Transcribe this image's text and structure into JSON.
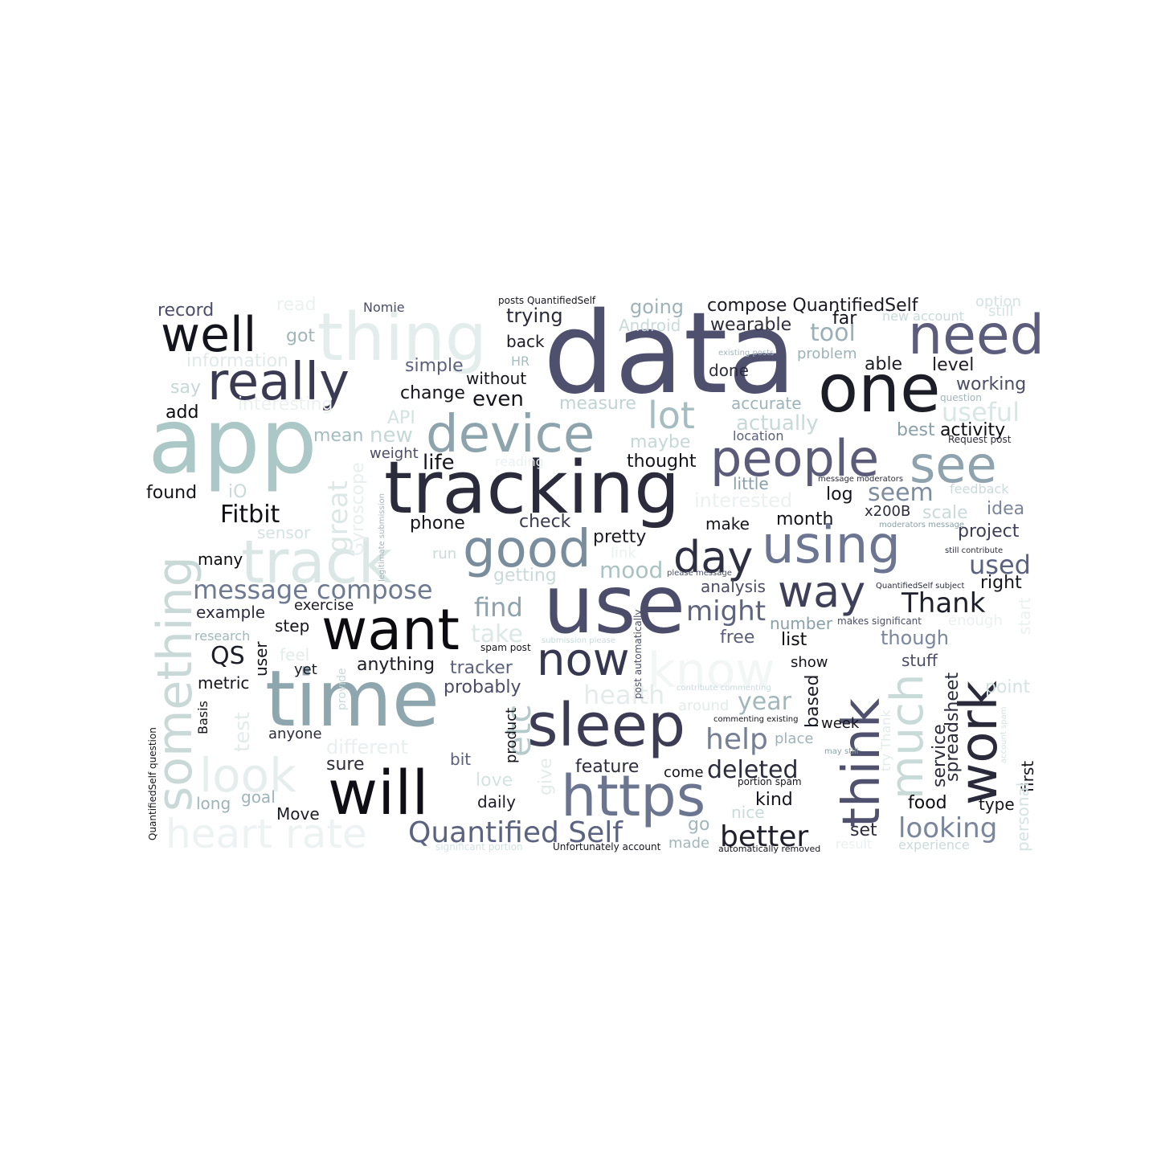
{
  "word_cloud": {
    "words": [
      {
        "text": "data",
        "color": "#4f506e"
      },
      {
        "text": "app",
        "color": "#abc8c7"
      },
      {
        "text": "tracking",
        "color": "#2b2b3c"
      },
      {
        "text": "use",
        "color": "#4c4d6a"
      },
      {
        "text": "time",
        "color": "#8ea6ae"
      },
      {
        "text": "thing",
        "color": "#e3edeb"
      },
      {
        "text": "one",
        "color": "#1d1d28"
      },
      {
        "text": "need",
        "color": "#5c5d7c"
      },
      {
        "text": "really",
        "color": "#3a3a53"
      },
      {
        "text": "well",
        "color": "#14141c"
      },
      {
        "text": "device",
        "color": "#8da4ad"
      },
      {
        "text": "people",
        "color": "#5b5c7a"
      },
      {
        "text": "see",
        "color": "#8ea3ad"
      },
      {
        "text": "good",
        "color": "#7a8d9c"
      },
      {
        "text": "using",
        "color": "#6c7591"
      },
      {
        "text": "track",
        "color": "#dbe7e5"
      },
      {
        "text": "want",
        "color": "#0b0b10"
      },
      {
        "text": "sleep",
        "color": "#3c3d55"
      },
      {
        "text": "will",
        "color": "#0e0e14"
      },
      {
        "text": "https",
        "color": "#6b7590"
      },
      {
        "text": "think",
        "color": "#50516f"
      },
      {
        "text": "work",
        "color": "#2a2a3b"
      },
      {
        "text": "something",
        "color": "#c9d9d8"
      },
      {
        "text": "know",
        "color": "#f2f6f5"
      },
      {
        "text": "much",
        "color": "#c8dbd9"
      },
      {
        "text": "now",
        "color": "#363750"
      },
      {
        "text": "day",
        "color": "#2e2f42"
      },
      {
        "text": "way",
        "color": "#3e3f58"
      },
      {
        "text": "look",
        "color": "#e6eeed"
      },
      {
        "text": "heart rate",
        "color": "#edf3f2"
      },
      {
        "text": "lot",
        "color": "#a5bcc0"
      },
      {
        "text": "etc",
        "color": "#b5cbcb"
      },
      {
        "text": "Quantified Self",
        "color": "#5c6380"
      },
      {
        "text": "message compose",
        "color": "#6e7a92"
      },
      {
        "text": "deleted",
        "color": "#2b2c3d"
      },
      {
        "text": "better",
        "color": "#1f1f2b"
      },
      {
        "text": "looking",
        "color": "#7a869c"
      },
      {
        "text": "help",
        "color": "#747e97"
      },
      {
        "text": "Thank",
        "color": "#20202c"
      },
      {
        "text": "might",
        "color": "#5e6480"
      },
      {
        "text": "compose QuantifiedSelf",
        "color": "#1a1a24"
      },
      {
        "text": "find",
        "color": "#8da2ac"
      },
      {
        "text": "used",
        "color": "#5b6180"
      },
      {
        "text": "Fitbit",
        "color": "#0f0f15"
      },
      {
        "text": "seem",
        "color": "#7e8ca0"
      },
      {
        "text": "tool",
        "color": "#9aafb6"
      },
      {
        "text": "year",
        "color": "#a1b7bb"
      },
      {
        "text": "health",
        "color": "#e3ecea"
      },
      {
        "text": "useful",
        "color": "#d8e6e4"
      },
      {
        "text": "mood",
        "color": "#aac2c2"
      },
      {
        "text": "take",
        "color": "#dce8e6"
      },
      {
        "text": "actually",
        "color": "#c7d9d8"
      },
      {
        "text": "interested",
        "color": "#eaf1f0"
      },
      {
        "text": "pretty",
        "color": "#1c1c27"
      },
      {
        "text": "probably",
        "color": "#4b4c68"
      },
      {
        "text": "tracker",
        "color": "#5b627d"
      },
      {
        "text": "anything",
        "color": "#1c1c26"
      },
      {
        "text": "different",
        "color": "#e8efee"
      },
      {
        "text": "QS",
        "color": "#1c1c27"
      },
      {
        "text": "month",
        "color": "#15151d"
      },
      {
        "text": "though",
        "color": "#79869c"
      },
      {
        "text": "project",
        "color": "#3d3e56"
      },
      {
        "text": "idea",
        "color": "#7a849b"
      },
      {
        "text": "great",
        "color": "#dce8e6"
      },
      {
        "text": "scale",
        "color": "#c9dad9"
      },
      {
        "text": "life",
        "color": "#15151d"
      },
      {
        "text": "new",
        "color": "#c5d7d6"
      },
      {
        "text": "maybe",
        "color": "#c5d7d6"
      },
      {
        "text": "trying",
        "color": "#2a2a3b"
      },
      {
        "text": "going",
        "color": "#9db3b9"
      },
      {
        "text": "measure",
        "color": "#c0d3d3"
      },
      {
        "text": "even",
        "color": "#14141c"
      },
      {
        "text": "simple",
        "color": "#5a607c"
      },
      {
        "text": "record",
        "color": "#4c4d69"
      },
      {
        "text": "read",
        "color": "#eaf1f0"
      },
      {
        "text": "got",
        "color": "#9fb5b9"
      },
      {
        "text": "information",
        "color": "#dfeae8"
      },
      {
        "text": "say",
        "color": "#c5d7d6"
      },
      {
        "text": "add",
        "color": "#0c0c11"
      },
      {
        "text": "Nomie",
        "color": "#4b4c68"
      },
      {
        "text": "posts QuantifiedSelf",
        "color": "#15151d"
      },
      {
        "text": "back",
        "color": "#1c1c27"
      },
      {
        "text": "HR",
        "color": "#a6bdc0"
      },
      {
        "text": "without",
        "color": "#14141c"
      },
      {
        "text": "change",
        "color": "#14141c"
      },
      {
        "text": "API",
        "color": "#d4e3e1"
      },
      {
        "text": "weight",
        "color": "#4b4d67"
      },
      {
        "text": "mean",
        "color": "#a5bcbf"
      },
      {
        "text": "found",
        "color": "#14141c"
      },
      {
        "text": "iO",
        "color": "#c9dad9"
      },
      {
        "text": "sensor",
        "color": "#d4e3e1"
      },
      {
        "text": "Gyroscope",
        "color": "#e8efee"
      },
      {
        "text": "many",
        "color": "#0c0c11"
      },
      {
        "text": "exercise",
        "color": "#1c1c27"
      },
      {
        "text": "example",
        "color": "#2c2c3d"
      },
      {
        "text": "step",
        "color": "#14141c"
      },
      {
        "text": "research",
        "color": "#a1b7bb"
      },
      {
        "text": "feel",
        "color": "#e3ecea"
      },
      {
        "text": "yet",
        "color": "#1c1c27"
      },
      {
        "text": "user",
        "color": "#14141c"
      },
      {
        "text": "metric",
        "color": "#14141c"
      },
      {
        "text": "test",
        "color": "#e3ecea"
      },
      {
        "text": "anyone",
        "color": "#2c2c3d"
      },
      {
        "text": "sure",
        "color": "#2c2c3d"
      },
      {
        "text": "bit",
        "color": "#5a607c"
      },
      {
        "text": "love",
        "color": "#d4e3e1"
      },
      {
        "text": "long",
        "color": "#9db3b9"
      },
      {
        "text": "goal",
        "color": "#9db3b9"
      },
      {
        "text": "Move",
        "color": "#1c1c27"
      },
      {
        "text": "daily",
        "color": "#1c1c27"
      },
      {
        "text": "phone",
        "color": "#14141c"
      },
      {
        "text": "check",
        "color": "#3a3b52"
      },
      {
        "text": "run",
        "color": "#c9dad9"
      },
      {
        "text": "getting",
        "color": "#c9dad9"
      },
      {
        "text": "link",
        "color": "#eaf1f0"
      },
      {
        "text": "thought",
        "color": "#14141c"
      },
      {
        "text": "make",
        "color": "#14141c"
      },
      {
        "text": "analysis",
        "color": "#4b4d67"
      },
      {
        "text": "free",
        "color": "#5a607c"
      },
      {
        "text": "number",
        "color": "#8aa0a9"
      },
      {
        "text": "list",
        "color": "#0c0c11"
      },
      {
        "text": "show",
        "color": "#14141c"
      },
      {
        "text": "stuff",
        "color": "#4b4d67"
      },
      {
        "text": "point",
        "color": "#d4e3e1"
      },
      {
        "text": "based",
        "color": "#1c1c27"
      },
      {
        "text": "week",
        "color": "#14141c"
      },
      {
        "text": "place",
        "color": "#9db3b9"
      },
      {
        "text": "around",
        "color": "#e3ecea"
      },
      {
        "text": "feature",
        "color": "#2c2c3d"
      },
      {
        "text": "come",
        "color": "#14141c"
      },
      {
        "text": "kind",
        "color": "#14141c"
      },
      {
        "text": "nice",
        "color": "#c9dad9"
      },
      {
        "text": "go",
        "color": "#a1b7bb"
      },
      {
        "text": "made",
        "color": "#a1b7bb"
      },
      {
        "text": "set",
        "color": "#2c2c3d"
      },
      {
        "text": "food",
        "color": "#0c0c11"
      },
      {
        "text": "type",
        "color": "#14141c"
      },
      {
        "text": "service",
        "color": "#2c2c3d"
      },
      {
        "text": "spreadsheet",
        "color": "#2c2c3d"
      },
      {
        "text": "first",
        "color": "#14141c"
      },
      {
        "text": "personal",
        "color": "#d4e3e1"
      },
      {
        "text": "experience",
        "color": "#c9dad9"
      },
      {
        "text": "result",
        "color": "#eaf1f0"
      },
      {
        "text": "give",
        "color": "#e3ecea"
      },
      {
        "text": "product",
        "color": "#14141c"
      },
      {
        "text": "provide",
        "color": "#c9dad9"
      },
      {
        "text": "wearable",
        "color": "#2c2c3d"
      },
      {
        "text": "Android",
        "color": "#c9dad9"
      },
      {
        "text": "done",
        "color": "#2c2c3d"
      },
      {
        "text": "accurate",
        "color": "#9db3b9"
      },
      {
        "text": "location",
        "color": "#5a607c"
      },
      {
        "text": "little",
        "color": "#8aa0a9"
      },
      {
        "text": "log",
        "color": "#14141c"
      },
      {
        "text": "x200B",
        "color": "#2c2c3d"
      },
      {
        "text": "able",
        "color": "#1c1c27"
      },
      {
        "text": "level",
        "color": "#1c1c27"
      },
      {
        "text": "working",
        "color": "#4b4d67"
      },
      {
        "text": "best",
        "color": "#8aa0a9"
      },
      {
        "text": "activity",
        "color": "#0c0c11"
      },
      {
        "text": "far",
        "color": "#14141c"
      },
      {
        "text": "problem",
        "color": "#9db3b9"
      },
      {
        "text": "option",
        "color": "#d4e3e1"
      },
      {
        "text": "still",
        "color": "#d4e3e1"
      },
      {
        "text": "new account",
        "color": "#c9dad9"
      },
      {
        "text": "question",
        "color": "#a1b7bb"
      },
      {
        "text": "Request post",
        "color": "#2c2c3d"
      },
      {
        "text": "feedback",
        "color": "#c9dad9"
      },
      {
        "text": "right",
        "color": "#14141c"
      },
      {
        "text": "enough",
        "color": "#eaf1f0"
      },
      {
        "text": "start",
        "color": "#eaf1f0"
      },
      {
        "text": "existing posts",
        "color": "#a1b7bb"
      },
      {
        "text": "message moderators",
        "color": "#2c2c3d"
      },
      {
        "text": "moderators message",
        "color": "#8aa0a9"
      },
      {
        "text": "still contribute",
        "color": "#2c2c3d"
      },
      {
        "text": "QuantifiedSelf subject",
        "color": "#2c2c3d"
      },
      {
        "text": "makes significant",
        "color": "#4b4d67"
      },
      {
        "text": "please message",
        "color": "#4b4d67"
      },
      {
        "text": "post automatically",
        "color": "#4b4d67"
      },
      {
        "text": "submission please",
        "color": "#c9dad9"
      },
      {
        "text": "spam post",
        "color": "#14141c"
      },
      {
        "text": "contribute commenting",
        "color": "#c9dad9"
      },
      {
        "text": "commenting existing",
        "color": "#14141c"
      },
      {
        "text": "may still",
        "color": "#8aa0a9"
      },
      {
        "text": "portion spam",
        "color": "#14141c"
      },
      {
        "text": "automatically removed",
        "color": "#14141c"
      },
      {
        "text": "Unfortunately account",
        "color": "#14141c"
      },
      {
        "text": "significant portion",
        "color": "#d4e3e1"
      },
      {
        "text": "legitimate submission",
        "color": "#a1b7bb"
      },
      {
        "text": "reading",
        "color": "#eaf1f0"
      },
      {
        "text": "interesting",
        "color": "#eaf1f0"
      },
      {
        "text": "Basis",
        "color": "#14141c"
      },
      {
        "text": "QuantifiedSelf question",
        "color": "#14141c"
      },
      {
        "text": "try Thank",
        "color": "#e3ecea"
      },
      {
        "text": "account spam",
        "color": "#d4e3e1"
      }
    ]
  }
}
